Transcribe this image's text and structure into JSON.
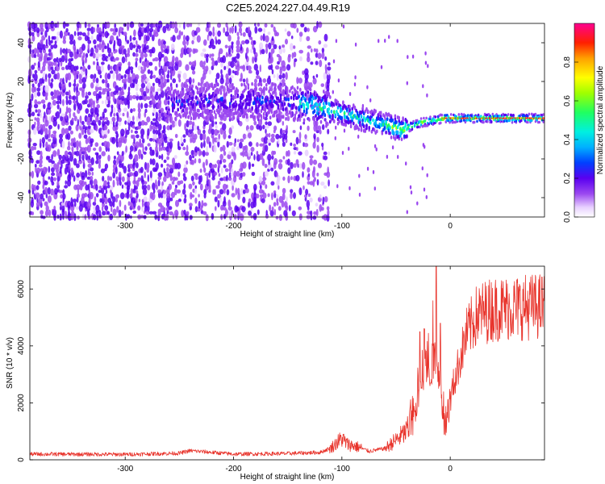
{
  "title": "C2E5.2024.227.04.49.R19",
  "chart_data": [
    {
      "type": "heatmap",
      "xlabel": "Height of straight line (km)",
      "ylabel": "Frequency (Hz)",
      "xlim": [
        -388,
        87
      ],
      "ylim": [
        -50,
        50
      ],
      "xticks": [
        -300,
        -200,
        -100,
        0
      ],
      "yticks": [
        -40,
        -20,
        0,
        20,
        40
      ],
      "colorbar": {
        "label": "Normalized spectral amplitude",
        "range": [
          0.0,
          1.0
        ],
        "ticks": [
          0.0,
          0.2,
          0.4,
          0.6,
          0.8
        ],
        "tick_labels": [
          "0.0",
          "0.2",
          "0.4",
          "0.6",
          "0.8"
        ]
      },
      "ridge": {
        "x": [
          -260,
          -230,
          -200,
          -160,
          -130,
          -110,
          -90,
          -70,
          -55,
          -45,
          -35,
          -25,
          -15,
          -5,
          10,
          30,
          60,
          87
        ],
        "y": [
          8,
          10,
          10,
          10,
          8,
          5,
          2,
          -1,
          -3,
          -5,
          -3,
          -1,
          0,
          1,
          1,
          1,
          1,
          1
        ]
      }
    },
    {
      "type": "line",
      "xlabel": "Height of straight line (km)",
      "ylabel": "SNR (10 * v/v)",
      "xlim": [
        -388,
        87
      ],
      "ylim": [
        0,
        6800
      ],
      "xticks": [
        -300,
        -200,
        -100,
        0
      ],
      "yticks": [
        0,
        2000,
        4000,
        6000
      ],
      "color": "#e8332b",
      "envelope": {
        "x": [
          -388,
          -300,
          -250,
          -240,
          -200,
          -150,
          -120,
          -110,
          -100,
          -95,
          -85,
          -75,
          -60,
          -50,
          -40,
          -32,
          -28,
          -24,
          -20,
          -15,
          -12,
          -8,
          -5,
          -2,
          2,
          8,
          15,
          25,
          40,
          60,
          87
        ],
        "y": [
          200,
          190,
          230,
          320,
          200,
          220,
          260,
          420,
          750,
          550,
          450,
          300,
          400,
          700,
          1000,
          1700,
          2400,
          3100,
          2900,
          3600,
          3300,
          2100,
          1100,
          1500,
          2500,
          3400,
          4400,
          5100,
          5300,
          5350,
          5400
        ]
      },
      "spikes": [
        {
          "x": -28,
          "y": 4500
        },
        {
          "x": -24,
          "y": 4600
        },
        {
          "x": -13,
          "y": 6800
        },
        {
          "x": -9,
          "y": 4800
        }
      ]
    }
  ]
}
